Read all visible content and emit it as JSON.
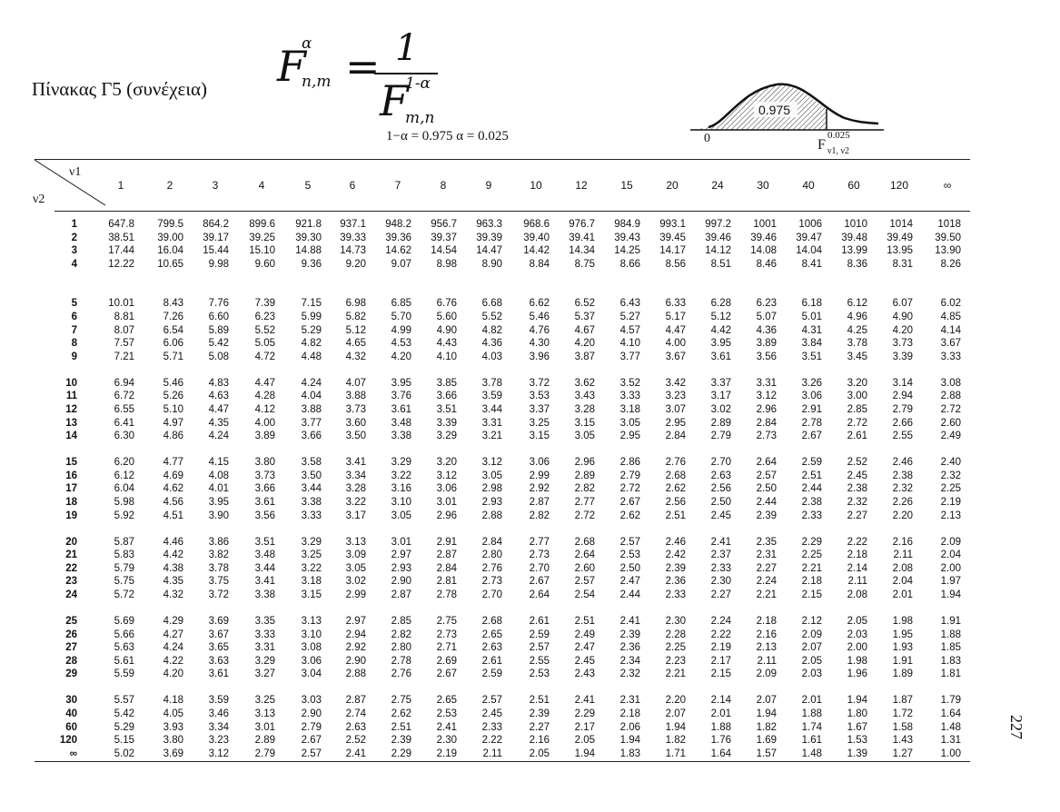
{
  "title": "Πίνακας Γ5  (συνέχεια)",
  "formula": {
    "lhs": "F",
    "lhs_sup": "α",
    "lhs_sub": "n,m",
    "eq": "=",
    "num": "1",
    "den": "F",
    "den_sup": "1-α",
    "den_sub": "m,n"
  },
  "params": "1−α = 0.975    α = 0.025",
  "density": {
    "area_label": "0.975",
    "zero": "0",
    "tail_label": "0.025",
    "quantile_label": "F",
    "quantile_sub": "ν1, ν2"
  },
  "table": {
    "corner_top": "ν1",
    "corner_bottom": "ν2",
    "columns": [
      "1",
      "2",
      "3",
      "4",
      "5",
      "6",
      "7",
      "8",
      "9",
      "10",
      "12",
      "15",
      "20",
      "24",
      "30",
      "40",
      "60",
      "120",
      "∞"
    ],
    "rows": [
      {
        "v2": "1",
        "values": [
          "647.8",
          "799.5",
          "864.2",
          "899.6",
          "921.8",
          "937.1",
          "948.2",
          "956.7",
          "963.3",
          "968.6",
          "976.7",
          "984.9",
          "993.1",
          "997.2",
          "1001",
          "1006",
          "1010",
          "1014",
          "1018"
        ]
      },
      {
        "v2": "2",
        "values": [
          "38.51",
          "39.00",
          "39.17",
          "39.25",
          "39.30",
          "39.33",
          "39.36",
          "39.37",
          "39.39",
          "39.40",
          "39.41",
          "39.43",
          "39.45",
          "39.46",
          "39.46",
          "39.47",
          "39.48",
          "39.49",
          "39.50"
        ]
      },
      {
        "v2": "3",
        "values": [
          "17.44",
          "16.04",
          "15.44",
          "15.10",
          "14.88",
          "14.73",
          "14.62",
          "14.54",
          "14.47",
          "14.42",
          "14.34",
          "14.25",
          "14.17",
          "14.12",
          "14.08",
          "14.04",
          "13.99",
          "13.95",
          "13.90"
        ]
      },
      {
        "v2": "4",
        "values": [
          "12.22",
          "10.65",
          "9.98",
          "9.60",
          "9.36",
          "9.20",
          "9.07",
          "8.98",
          "8.90",
          "8.84",
          "8.75",
          "8.66",
          "8.56",
          "8.51",
          "8.46",
          "8.41",
          "8.36",
          "8.31",
          "8.26"
        ]
      },
      {
        "v2": "5",
        "values": [
          "10.01",
          "8.43",
          "7.76",
          "7.39",
          "7.15",
          "6.98",
          "6.85",
          "6.76",
          "6.68",
          "6.62",
          "6.52",
          "6.43",
          "6.33",
          "6.28",
          "6.23",
          "6.18",
          "6.12",
          "6.07",
          "6.02"
        ]
      },
      {
        "v2": "6",
        "values": [
          "8.81",
          "7.26",
          "6.60",
          "6.23",
          "5.99",
          "5.82",
          "5.70",
          "5.60",
          "5.52",
          "5.46",
          "5.37",
          "5.27",
          "5.17",
          "5.12",
          "5.07",
          "5.01",
          "4.96",
          "4.90",
          "4.85"
        ]
      },
      {
        "v2": "7",
        "values": [
          "8.07",
          "6.54",
          "5.89",
          "5.52",
          "5.29",
          "5.12",
          "4.99",
          "4.90",
          "4.82",
          "4.76",
          "4.67",
          "4.57",
          "4.47",
          "4.42",
          "4.36",
          "4.31",
          "4.25",
          "4.20",
          "4.14"
        ]
      },
      {
        "v2": "8",
        "values": [
          "7.57",
          "6.06",
          "5.42",
          "5.05",
          "4.82",
          "4.65",
          "4.53",
          "4.43",
          "4.36",
          "4.30",
          "4.20",
          "4.10",
          "4.00",
          "3.95",
          "3.89",
          "3.84",
          "3.78",
          "3.73",
          "3.67"
        ]
      },
      {
        "v2": "9",
        "values": [
          "7.21",
          "5.71",
          "5.08",
          "4.72",
          "4.48",
          "4.32",
          "4.20",
          "4.10",
          "4.03",
          "3.96",
          "3.87",
          "3.77",
          "3.67",
          "3.61",
          "3.56",
          "3.51",
          "3.45",
          "3.39",
          "3.33"
        ]
      },
      {
        "v2": "10",
        "values": [
          "6.94",
          "5.46",
          "4.83",
          "4.47",
          "4.24",
          "4.07",
          "3.95",
          "3.85",
          "3.78",
          "3.72",
          "3.62",
          "3.52",
          "3.42",
          "3.37",
          "3.31",
          "3.26",
          "3.20",
          "3.14",
          "3.08"
        ]
      },
      {
        "v2": "11",
        "values": [
          "6.72",
          "5.26",
          "4.63",
          "4.28",
          "4.04",
          "3.88",
          "3.76",
          "3.66",
          "3.59",
          "3.53",
          "3.43",
          "3.33",
          "3.23",
          "3.17",
          "3.12",
          "3.06",
          "3.00",
          "2.94",
          "2.88"
        ]
      },
      {
        "v2": "12",
        "values": [
          "6.55",
          "5.10",
          "4.47",
          "4.12",
          "3.88",
          "3.73",
          "3.61",
          "3.51",
          "3.44",
          "3.37",
          "3.28",
          "3.18",
          "3.07",
          "3.02",
          "2.96",
          "2.91",
          "2.85",
          "2.79",
          "2.72"
        ]
      },
      {
        "v2": "13",
        "values": [
          "6.41",
          "4.97",
          "4.35",
          "4.00",
          "3.77",
          "3.60",
          "3.48",
          "3.39",
          "3.31",
          "3.25",
          "3.15",
          "3.05",
          "2.95",
          "2.89",
          "2.84",
          "2.78",
          "2.72",
          "2.66",
          "2.60"
        ]
      },
      {
        "v2": "14",
        "values": [
          "6.30",
          "4.86",
          "4.24",
          "3.89",
          "3.66",
          "3.50",
          "3.38",
          "3.29",
          "3.21",
          "3.15",
          "3.05",
          "2.95",
          "2.84",
          "2.79",
          "2.73",
          "2.67",
          "2.61",
          "2.55",
          "2.49"
        ]
      },
      {
        "v2": "15",
        "values": [
          "6.20",
          "4.77",
          "4.15",
          "3.80",
          "3.58",
          "3.41",
          "3.29",
          "3.20",
          "3.12",
          "3.06",
          "2.96",
          "2.86",
          "2.76",
          "2.70",
          "2.64",
          "2.59",
          "2.52",
          "2.46",
          "2.40"
        ]
      },
      {
        "v2": "16",
        "values": [
          "6.12",
          "4.69",
          "4.08",
          "3.73",
          "3.50",
          "3.34",
          "3.22",
          "3.12",
          "3.05",
          "2.99",
          "2.89",
          "2.79",
          "2.68",
          "2.63",
          "2.57",
          "2.51",
          "2.45",
          "2.38",
          "2.32"
        ]
      },
      {
        "v2": "17",
        "values": [
          "6.04",
          "4.62",
          "4.01",
          "3.66",
          "3.44",
          "3.28",
          "3.16",
          "3.06",
          "2.98",
          "2.92",
          "2.82",
          "2.72",
          "2.62",
          "2.56",
          "2.50",
          "2.44",
          "2.38",
          "2.32",
          "2.25"
        ]
      },
      {
        "v2": "18",
        "values": [
          "5.98",
          "4.56",
          "3.95",
          "3.61",
          "3.38",
          "3.22",
          "3.10",
          "3.01",
          "2.93",
          "2.87",
          "2.77",
          "2.67",
          "2.56",
          "2.50",
          "2.44",
          "2.38",
          "2.32",
          "2.26",
          "2.19"
        ]
      },
      {
        "v2": "19",
        "values": [
          "5.92",
          "4.51",
          "3.90",
          "3.56",
          "3.33",
          "3.17",
          "3.05",
          "2.96",
          "2.88",
          "2.82",
          "2.72",
          "2.62",
          "2.51",
          "2.45",
          "2.39",
          "2.33",
          "2.27",
          "2.20",
          "2.13"
        ]
      },
      {
        "v2": "20",
        "values": [
          "5.87",
          "4.46",
          "3.86",
          "3.51",
          "3.29",
          "3.13",
          "3.01",
          "2.91",
          "2.84",
          "2.77",
          "2.68",
          "2.57",
          "2.46",
          "2.41",
          "2.35",
          "2.29",
          "2.22",
          "2.16",
          "2.09"
        ]
      },
      {
        "v2": "21",
        "values": [
          "5.83",
          "4.42",
          "3.82",
          "3.48",
          "3.25",
          "3.09",
          "2.97",
          "2.87",
          "2.80",
          "2.73",
          "2.64",
          "2.53",
          "2.42",
          "2.37",
          "2.31",
          "2.25",
          "2.18",
          "2.11",
          "2.04"
        ]
      },
      {
        "v2": "22",
        "values": [
          "5.79",
          "4.38",
          "3.78",
          "3.44",
          "3.22",
          "3.05",
          "2.93",
          "2.84",
          "2.76",
          "2.70",
          "2.60",
          "2.50",
          "2.39",
          "2.33",
          "2.27",
          "2.21",
          "2.14",
          "2.08",
          "2.00"
        ]
      },
      {
        "v2": "23",
        "values": [
          "5.75",
          "4.35",
          "3.75",
          "3.41",
          "3.18",
          "3.02",
          "2.90",
          "2.81",
          "2.73",
          "2.67",
          "2.57",
          "2.47",
          "2.36",
          "2.30",
          "2.24",
          "2.18",
          "2.11",
          "2.04",
          "1.97"
        ]
      },
      {
        "v2": "24",
        "values": [
          "5.72",
          "4.32",
          "3.72",
          "3.38",
          "3.15",
          "2.99",
          "2.87",
          "2.78",
          "2.70",
          "2.64",
          "2.54",
          "2.44",
          "2.33",
          "2.27",
          "2.21",
          "2.15",
          "2.08",
          "2.01",
          "1.94"
        ]
      },
      {
        "v2": "25",
        "values": [
          "5.69",
          "4.29",
          "3.69",
          "3.35",
          "3.13",
          "2.97",
          "2.85",
          "2.75",
          "2.68",
          "2.61",
          "2.51",
          "2.41",
          "2.30",
          "2.24",
          "2.18",
          "2.12",
          "2.05",
          "1.98",
          "1.91"
        ]
      },
      {
        "v2": "26",
        "values": [
          "5.66",
          "4.27",
          "3.67",
          "3.33",
          "3.10",
          "2.94",
          "2.82",
          "2.73",
          "2.65",
          "2.59",
          "2.49",
          "2.39",
          "2.28",
          "2.22",
          "2.16",
          "2.09",
          "2.03",
          "1.95",
          "1.88"
        ]
      },
      {
        "v2": "27",
        "values": [
          "5.63",
          "4.24",
          "3.65",
          "3.31",
          "3.08",
          "2.92",
          "2.80",
          "2.71",
          "2.63",
          "2.57",
          "2.47",
          "2.36",
          "2.25",
          "2.19",
          "2.13",
          "2.07",
          "2.00",
          "1.93",
          "1.85"
        ]
      },
      {
        "v2": "28",
        "values": [
          "5.61",
          "4.22",
          "3.63",
          "3.29",
          "3.06",
          "2.90",
          "2.78",
          "2.69",
          "2.61",
          "2.55",
          "2.45",
          "2.34",
          "2.23",
          "2.17",
          "2.11",
          "2.05",
          "1.98",
          "1.91",
          "1.83"
        ]
      },
      {
        "v2": "29",
        "values": [
          "5.59",
          "4.20",
          "3.61",
          "3.27",
          "3.04",
          "2.88",
          "2.76",
          "2.67",
          "2.59",
          "2.53",
          "2.43",
          "2.32",
          "2.21",
          "2.15",
          "2.09",
          "2.03",
          "1.96",
          "1.89",
          "1.81"
        ]
      },
      {
        "v2": "30",
        "values": [
          "5.57",
          "4.18",
          "3.59",
          "3.25",
          "3.03",
          "2.87",
          "2.75",
          "2.65",
          "2.57",
          "2.51",
          "2.41",
          "2.31",
          "2.20",
          "2.14",
          "2.07",
          "2.01",
          "1.94",
          "1.87",
          "1.79"
        ]
      },
      {
        "v2": "40",
        "values": [
          "5.42",
          "4.05",
          "3.46",
          "3.13",
          "2.90",
          "2.74",
          "2.62",
          "2.53",
          "2.45",
          "2.39",
          "2.29",
          "2.18",
          "2.07",
          "2.01",
          "1.94",
          "1.88",
          "1.80",
          "1.72",
          "1.64"
        ]
      },
      {
        "v2": "60",
        "values": [
          "5.29",
          "3.93",
          "3.34",
          "3.01",
          "2.79",
          "2.63",
          "2.51",
          "2.41",
          "2.33",
          "2.27",
          "2.17",
          "2.06",
          "1.94",
          "1.88",
          "1.82",
          "1.74",
          "1.67",
          "1.58",
          "1.48"
        ]
      },
      {
        "v2": "120",
        "values": [
          "5.15",
          "3.80",
          "3.23",
          "2.89",
          "2.67",
          "2.52",
          "2.39",
          "2.30",
          "2.22",
          "2.16",
          "2.05",
          "1.94",
          "1.82",
          "1.76",
          "1.69",
          "1.61",
          "1.53",
          "1.43",
          "1.31"
        ]
      },
      {
        "v2": "∞",
        "values": [
          "5.02",
          "3.69",
          "3.12",
          "2.79",
          "2.57",
          "2.41",
          "2.29",
          "2.19",
          "2.11",
          "2.05",
          "1.94",
          "1.83",
          "1.71",
          "1.64",
          "1.57",
          "1.48",
          "1.39",
          "1.27",
          "1.00"
        ]
      }
    ]
  },
  "page_number": "227"
}
